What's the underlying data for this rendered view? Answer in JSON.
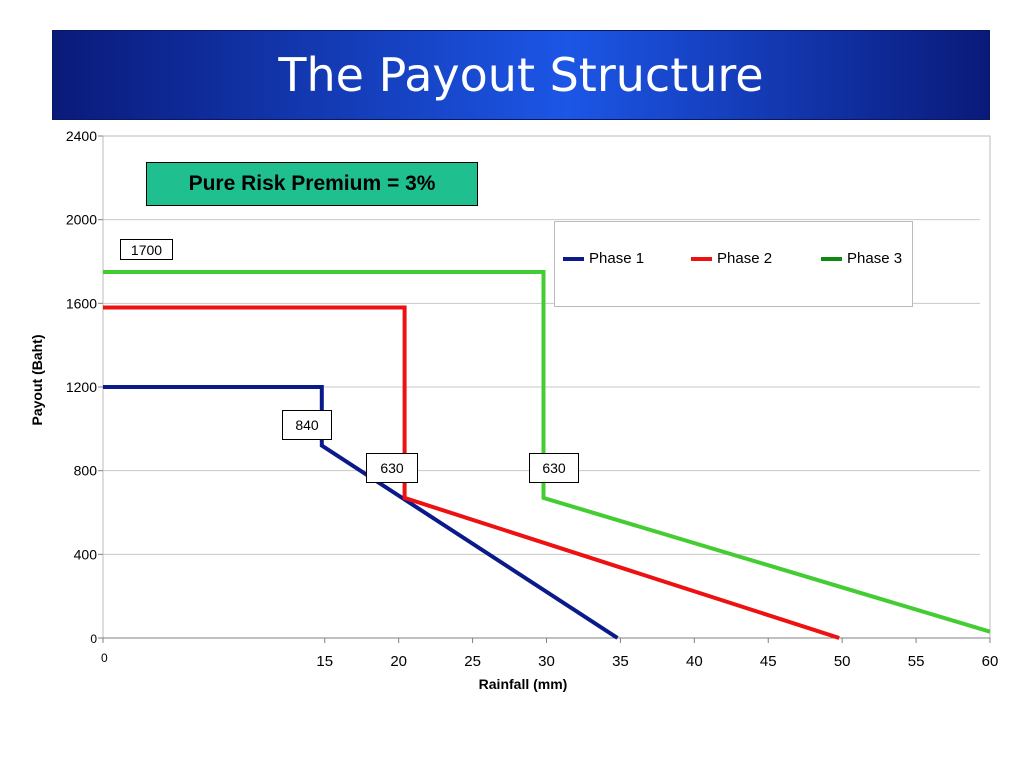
{
  "slide": {
    "title": "The Payout Structure"
  },
  "premium_label": "Pure Risk Premium = 3%",
  "chart_data": {
    "type": "line",
    "title": "",
    "xlabel": "Rainfall (mm)",
    "ylabel": "Payout (Baht)",
    "xlim": [
      0,
      60
    ],
    "ylim": [
      0,
      2400
    ],
    "x_ticks": [
      0,
      15,
      20,
      25,
      30,
      35,
      40,
      45,
      50,
      55,
      60
    ],
    "y_ticks": [
      0,
      400,
      800,
      1200,
      1600,
      2000,
      2400
    ],
    "grid": "horizontal",
    "legend_position": "top-right",
    "series": [
      {
        "name": "Phase 1",
        "color": "#0a1a8a",
        "points": [
          [
            0,
            1200
          ],
          [
            14.8,
            1200
          ],
          [
            14.8,
            920
          ],
          [
            34.8,
            0
          ]
        ]
      },
      {
        "name": "Phase 2",
        "color": "#ee1111",
        "points": [
          [
            0,
            1580
          ],
          [
            20.4,
            1580
          ],
          [
            20.4,
            670
          ],
          [
            49.8,
            0
          ]
        ]
      },
      {
        "name": "Phase 3",
        "color": "#44cc33",
        "legend_color": "#118811",
        "points": [
          [
            0,
            1750
          ],
          [
            29.8,
            1750
          ],
          [
            29.8,
            670
          ],
          [
            60,
            30
          ]
        ]
      }
    ],
    "annotations": [
      {
        "text": "1700",
        "id": "a1700"
      },
      {
        "text": "840",
        "id": "a840"
      },
      {
        "text": "630",
        "id": "a630a"
      },
      {
        "text": "630",
        "id": "a630b"
      }
    ]
  }
}
